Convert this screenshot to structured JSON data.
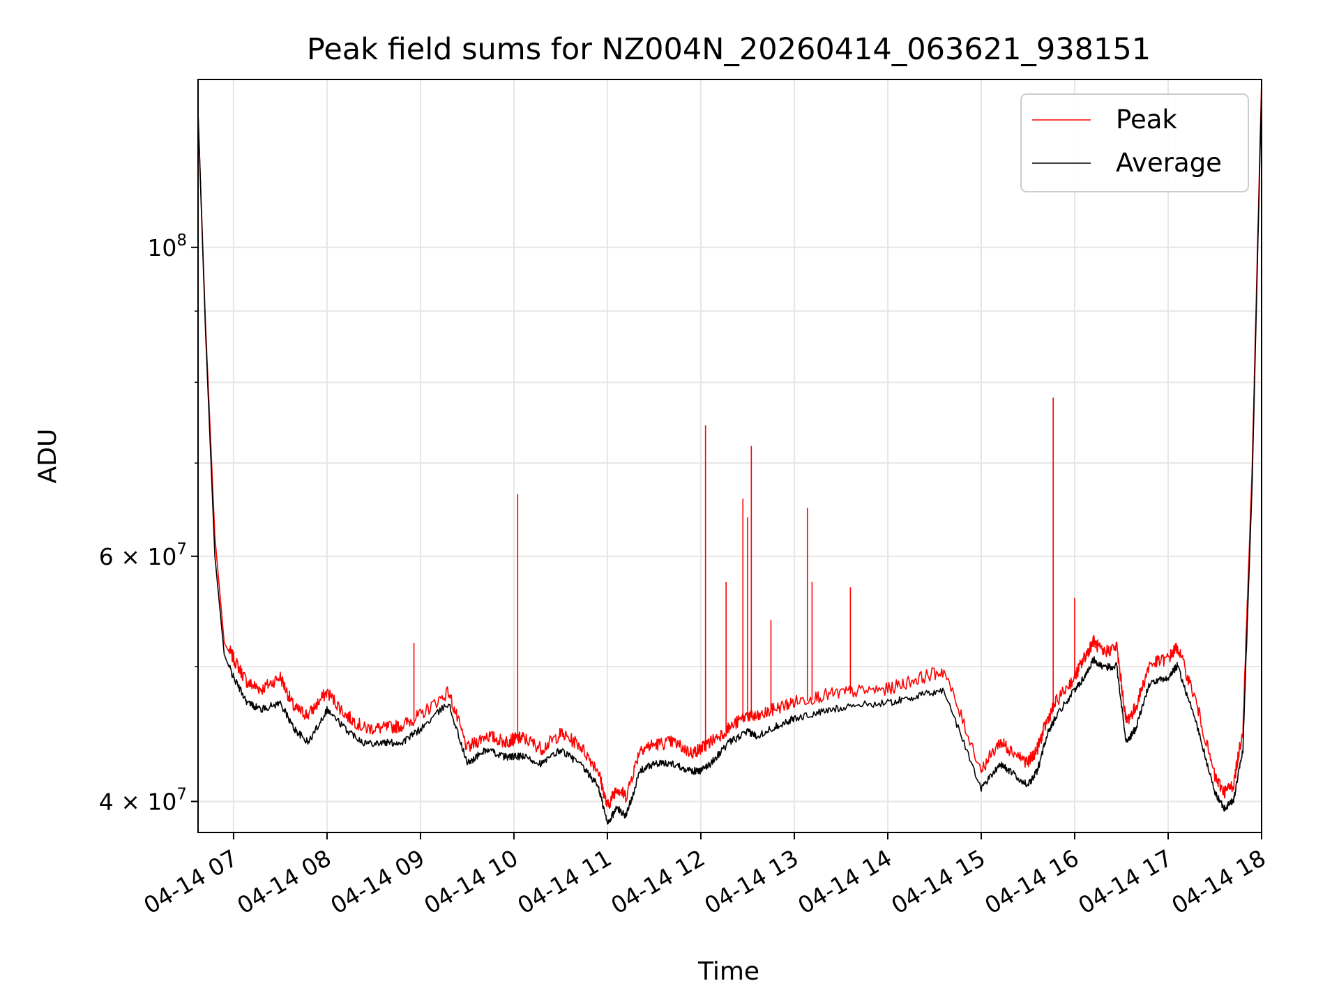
{
  "chart_data": {
    "type": "line",
    "title": "Peak field sums for NZ004N_20260414_063621_938151",
    "xlabel": "Time",
    "ylabel": "ADU",
    "yscale": "log",
    "ylim": [
      38000000,
      132000000
    ],
    "xlim": [
      6.62,
      18.0
    ],
    "grid": true,
    "legend_location": "top-right",
    "x_ticks": [
      {
        "value": 7,
        "label": "04-14 07"
      },
      {
        "value": 8,
        "label": "04-14 08"
      },
      {
        "value": 9,
        "label": "04-14 09"
      },
      {
        "value": 10,
        "label": "04-14 10"
      },
      {
        "value": 11,
        "label": "04-14 11"
      },
      {
        "value": 12,
        "label": "04-14 12"
      },
      {
        "value": 13,
        "label": "04-14 13"
      },
      {
        "value": 14,
        "label": "04-14 14"
      },
      {
        "value": 15,
        "label": "04-14 15"
      },
      {
        "value": 16,
        "label": "04-14 16"
      },
      {
        "value": 17,
        "label": "04-14 17"
      },
      {
        "value": 18,
        "label": "04-14 18"
      }
    ],
    "y_major_ticks": [
      {
        "value": 100000000,
        "mantissa": "",
        "base": "10",
        "exp": "8"
      },
      {
        "value": 60000000,
        "mantissa": "6 × ",
        "base": "10",
        "exp": "7"
      },
      {
        "value": 40000000,
        "mantissa": "4 × ",
        "base": "10",
        "exp": "7"
      }
    ],
    "y_minor_ticks": [
      50000000,
      70000000,
      80000000,
      90000000
    ],
    "series": [
      {
        "name": "Peak",
        "color": "#ff0000",
        "x": [
          6.62,
          6.7,
          6.8,
          6.9,
          7.0,
          7.15,
          7.3,
          7.5,
          7.65,
          7.8,
          8.0,
          8.2,
          8.4,
          8.6,
          8.8,
          9.0,
          9.3,
          9.5,
          9.7,
          9.9,
          10.0,
          10.1,
          10.3,
          10.5,
          10.7,
          10.9,
          11.0,
          11.1,
          11.2,
          11.35,
          11.5,
          11.7,
          11.9,
          12.0,
          12.1,
          12.3,
          12.5,
          12.6,
          12.8,
          13.0,
          13.3,
          13.6,
          14.0,
          14.3,
          14.6,
          15.0,
          15.2,
          15.3,
          15.5,
          15.6,
          15.7,
          15.8,
          16.0,
          16.1,
          16.2,
          16.3,
          16.45,
          16.55,
          16.65,
          16.8,
          17.0,
          17.1,
          17.3,
          17.5,
          17.6,
          17.7,
          17.8,
          17.9,
          18.0
        ],
        "values": [
          125000000,
          88000000,
          62000000,
          52000000,
          50500000,
          48500000,
          48000000,
          49000000,
          46500000,
          46000000,
          47800000,
          46000000,
          45000000,
          45000000,
          45200000,
          46000000,
          47800000,
          43500000,
          44500000,
          44000000,
          44200000,
          44300000,
          43500000,
          44600000,
          43800000,
          42000000,
          39500000,
          40800000,
          40200000,
          43500000,
          43800000,
          44000000,
          43200000,
          43500000,
          44000000,
          45000000,
          46000000,
          45800000,
          46500000,
          47000000,
          47500000,
          47800000,
          48000000,
          48800000,
          49500000,
          42000000,
          44000000,
          43500000,
          42500000,
          43500000,
          45500000,
          47000000,
          49000000,
          50500000,
          52000000,
          51000000,
          51500000,
          45500000,
          46500000,
          50000000,
          50500000,
          51500000,
          47000000,
          41500000,
          40500000,
          41000000,
          45000000,
          70000000,
          132000000
        ],
        "spikes": [
          {
            "x": 8.93,
            "value": 52000000
          },
          {
            "x": 10.04,
            "value": 66500000
          },
          {
            "x": 12.05,
            "value": 74500000
          },
          {
            "x": 12.27,
            "value": 57500000
          },
          {
            "x": 12.45,
            "value": 66000000
          },
          {
            "x": 12.5,
            "value": 64000000
          },
          {
            "x": 12.54,
            "value": 72000000
          },
          {
            "x": 12.75,
            "value": 54000000
          },
          {
            "x": 13.14,
            "value": 65000000
          },
          {
            "x": 13.19,
            "value": 57500000
          },
          {
            "x": 13.6,
            "value": 57000000
          },
          {
            "x": 15.77,
            "value": 78000000
          },
          {
            "x": 16.0,
            "value": 56000000
          }
        ]
      },
      {
        "name": "Average",
        "color": "#000000",
        "x": [
          6.62,
          6.7,
          6.8,
          6.9,
          7.0,
          7.15,
          7.3,
          7.5,
          7.65,
          7.8,
          8.0,
          8.2,
          8.4,
          8.6,
          8.8,
          9.0,
          9.3,
          9.5,
          9.7,
          9.9,
          10.0,
          10.1,
          10.3,
          10.5,
          10.7,
          10.9,
          11.0,
          11.1,
          11.2,
          11.35,
          11.5,
          11.7,
          11.9,
          12.0,
          12.1,
          12.3,
          12.5,
          12.6,
          12.8,
          13.0,
          13.3,
          13.6,
          14.0,
          14.3,
          14.6,
          15.0,
          15.2,
          15.3,
          15.5,
          15.6,
          15.7,
          15.8,
          16.0,
          16.1,
          16.2,
          16.3,
          16.45,
          16.55,
          16.65,
          16.8,
          17.0,
          17.1,
          17.3,
          17.5,
          17.6,
          17.7,
          17.8,
          17.9,
          18.0
        ],
        "values": [
          125000000,
          87000000,
          60000000,
          51000000,
          49000000,
          47000000,
          46500000,
          47000000,
          45000000,
          44000000,
          46500000,
          45000000,
          44000000,
          44000000,
          44000000,
          45000000,
          47000000,
          42500000,
          43500000,
          43000000,
          43000000,
          43000000,
          42500000,
          43500000,
          42500000,
          41000000,
          38500000,
          39500000,
          39000000,
          42000000,
          42500000,
          42500000,
          42000000,
          42000000,
          42500000,
          44000000,
          44800000,
          44500000,
          45200000,
          45800000,
          46300000,
          46800000,
          47000000,
          47500000,
          48000000,
          40800000,
          42500000,
          42000000,
          41000000,
          42000000,
          44500000,
          46000000,
          48000000,
          49000000,
          50500000,
          49800000,
          50000000,
          44000000,
          45000000,
          48500000,
          49000000,
          50000000,
          45500000,
          40500000,
          39500000,
          40000000,
          43500000,
          68000000,
          130000000
        ]
      }
    ]
  }
}
